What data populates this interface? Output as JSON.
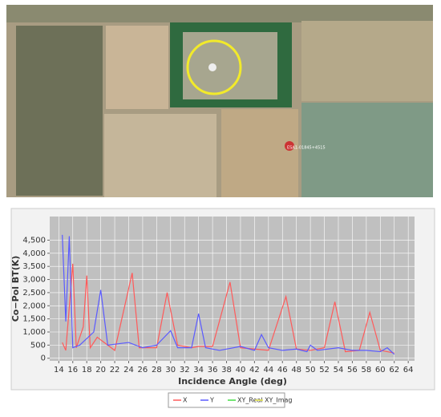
{
  "map": {
    "marker_label": "ESA1-01845+4515"
  },
  "chart_data": {
    "type": "line",
    "x_label": "Incidence Angle (deg)",
    "y_label": "Co−Pol BT(K)",
    "xlim": [
      12.7,
      64.9
    ],
    "ylim": [
      -100,
      5400
    ],
    "xticks": [
      14,
      16,
      18,
      20,
      22,
      24,
      26,
      28,
      30,
      32,
      34,
      36,
      38,
      40,
      42,
      44,
      46,
      48,
      50,
      52,
      54,
      56,
      58,
      60,
      62,
      64
    ],
    "yticks": [
      {
        "value": 0,
        "label": "0"
      },
      {
        "value": 500,
        "label": "500"
      },
      {
        "value": 1000,
        "label": "1,000"
      },
      {
        "value": 1500,
        "label": "1,500"
      },
      {
        "value": 2000,
        "label": "2,000"
      },
      {
        "value": 2500,
        "label": "2,500"
      },
      {
        "value": 3000,
        "label": "3,000"
      },
      {
        "value": 3500,
        "label": "3,500"
      },
      {
        "value": 4000,
        "label": "4,000"
      },
      {
        "value": 4500,
        "label": "4,500"
      }
    ],
    "grid": true,
    "series": [
      {
        "name": "X",
        "color": "#ff5a5a",
        "x": [
          14.5,
          15,
          16,
          16.5,
          17.5,
          18,
          18.5,
          19.5,
          20,
          22,
          24.5,
          25.5,
          28,
          29.5,
          31,
          33,
          34,
          36,
          38.5,
          40,
          42,
          44,
          46.5,
          48,
          50,
          52,
          53.5,
          55,
          57,
          58.5,
          60,
          62
        ],
        "values": [
          600,
          300,
          3600,
          400,
          1200,
          3150,
          400,
          800,
          700,
          300,
          3250,
          400,
          400,
          2500,
          500,
          400,
          450,
          450,
          2900,
          400,
          350,
          300,
          2350,
          350,
          300,
          400,
          2150,
          250,
          300,
          1750,
          300,
          200
        ]
      },
      {
        "name": "Y",
        "color": "#5a5aff",
        "x": [
          14.5,
          15,
          15.5,
          16,
          17,
          19,
          20,
          21,
          24,
          26,
          28,
          30,
          31,
          33,
          34,
          35,
          37,
          40,
          42,
          43,
          44,
          46,
          48,
          49.5,
          50,
          51,
          54,
          56,
          58,
          60,
          61,
          62
        ],
        "values": [
          4700,
          1400,
          4650,
          400,
          500,
          1000,
          2600,
          500,
          600,
          400,
          500,
          1050,
          400,
          400,
          1700,
          400,
          300,
          450,
          300,
          900,
          400,
          300,
          350,
          250,
          500,
          300,
          400,
          300,
          300,
          250,
          400,
          150
        ]
      },
      {
        "name": "XY_Real",
        "color": "#44dd44",
        "x": [],
        "values": []
      },
      {
        "name": "XY_Imag",
        "color": "#e8e84a",
        "x": [],
        "values": []
      }
    ]
  }
}
